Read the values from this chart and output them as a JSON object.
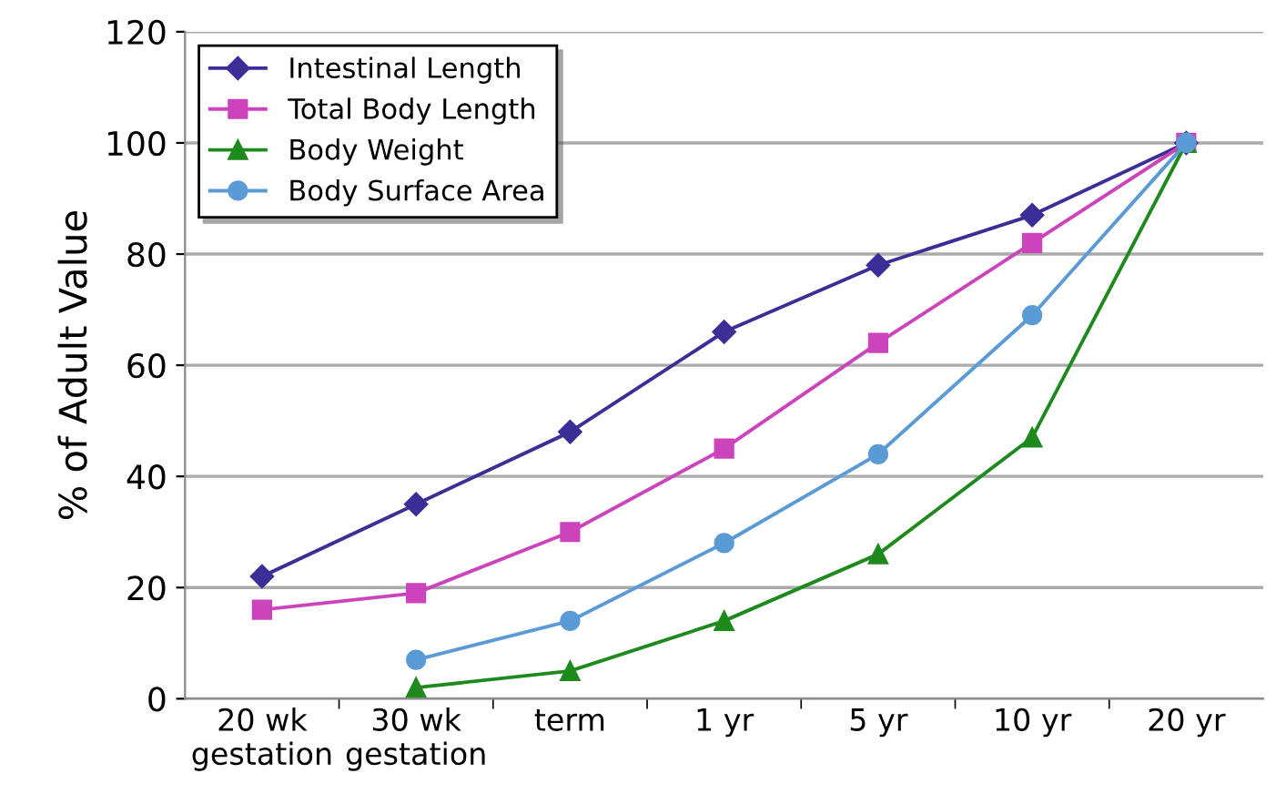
{
  "chart_data": {
    "type": "line",
    "ylabel": "% of Adult Value",
    "categories": [
      "20 wk\ngestation",
      "30 wk\ngestation",
      "term",
      "1 yr",
      "5 yr",
      "10 yr",
      "20 yr"
    ],
    "series": [
      {
        "name": "Intestinal Length",
        "color": "#3b2e96",
        "marker": "diamond",
        "values": [
          22,
          35,
          48,
          66,
          78,
          87,
          100
        ]
      },
      {
        "name": "Total Body Length",
        "color": "#cc44bb",
        "marker": "square",
        "values": [
          16,
          19,
          30,
          45,
          64,
          82,
          100
        ]
      },
      {
        "name": "Body Weight",
        "color": "#1e8a1e",
        "marker": "triangle",
        "values": [
          null,
          2,
          5,
          14,
          26,
          47,
          100
        ]
      },
      {
        "name": "Body Surface Area",
        "color": "#5b9bd5",
        "marker": "circle",
        "values": [
          null,
          7,
          14,
          28,
          44,
          69,
          100
        ]
      }
    ],
    "ylim": [
      0,
      120
    ],
    "yticks": [
      0,
      20,
      40,
      60,
      80,
      100,
      120
    ],
    "grid": "y",
    "legend": "top left"
  }
}
